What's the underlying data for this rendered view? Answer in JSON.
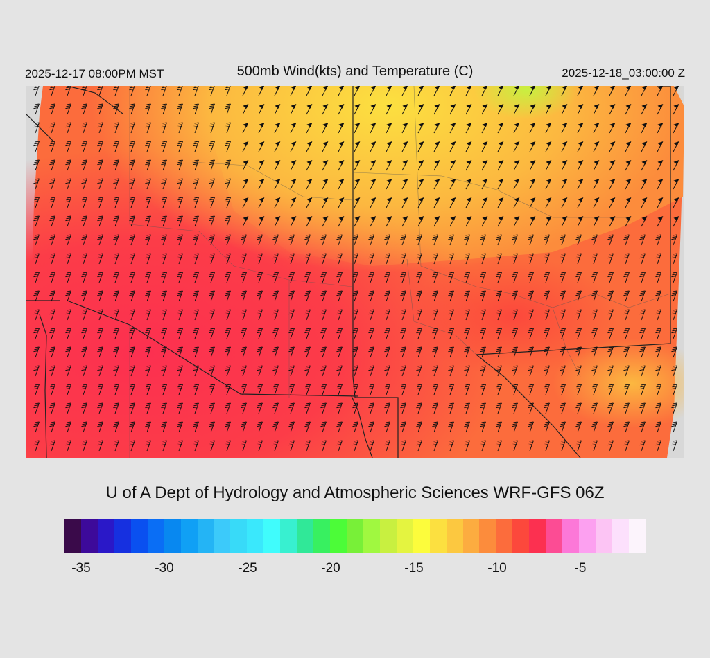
{
  "header": {
    "local_time": "2025-12-17 08:00PM MST",
    "title": "500mb Wind(kts) and Temperature (C)",
    "valid_time": "2025-12-18_03:00:00 Z"
  },
  "credit": "U of A Dept of Hydrology and Atmospheric Sciences WRF-GFS 06Z",
  "colorbar": {
    "colors": [
      "#3a0a4a",
      "#3d0a9a",
      "#2a18c8",
      "#1630e0",
      "#0a50f0",
      "#0a6ef5",
      "#0888f0",
      "#10a0f5",
      "#24b4f5",
      "#3ccafa",
      "#38daf8",
      "#3ae8fc",
      "#40fcfc",
      "#38f0d0",
      "#30e898",
      "#38f060",
      "#4cfc38",
      "#78f038",
      "#a0f840",
      "#c8f040",
      "#e4f440",
      "#fcfc3c",
      "#fce040",
      "#fcc840",
      "#fcac40",
      "#fc8c3c",
      "#fc6c3c",
      "#fc483c",
      "#fc3050",
      "#fc4c94",
      "#fc78d8",
      "#fca0f0",
      "#fcc4f4",
      "#fce0fc",
      "#fcf4fc"
    ],
    "labels": [
      "-35",
      "-30",
      "-25",
      "-20",
      "-15",
      "-10",
      "-5"
    ]
  },
  "map": {
    "field": "500mb temperature (C) with wind barbs",
    "temperature_range_shown": [
      -17,
      -7
    ]
  }
}
